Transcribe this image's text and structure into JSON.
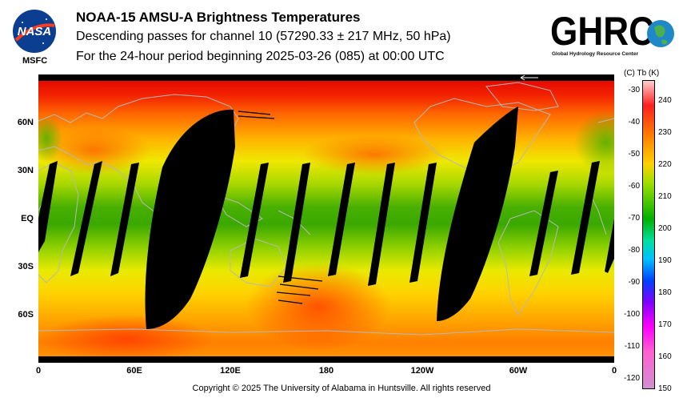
{
  "header": {
    "title": "NOAA-15 AMSU-A Brightness Temperatures",
    "subtitle1": "Descending passes for channel 10 (57290.33 ± 217 MHz, 50 hPa)",
    "subtitle2": "For the 24-hour period beginning 2025-03-26 (085) at 00:00 UTC"
  },
  "logos": {
    "nasa": "NASA",
    "msfc": "MSFC",
    "ghrc": "GHRC",
    "ghrc_full": "Global Hydrology Resource Center"
  },
  "map": {
    "lat_labels": [
      "60N",
      "30N",
      "EQ",
      "30S",
      "60S"
    ],
    "lon_labels": [
      "0",
      "60E",
      "120E",
      "180",
      "120W",
      "60W",
      "0"
    ]
  },
  "colorbar": {
    "header": "(C)  Tb  (K)",
    "celsius_ticks": [
      "-30",
      "-40",
      "-50",
      "-60",
      "-70",
      "-80",
      "-90",
      "-100",
      "-110",
      "-120"
    ],
    "kelvin_ticks": [
      "240",
      "230",
      "220",
      "210",
      "200",
      "190",
      "180",
      "170",
      "160",
      "150"
    ]
  },
  "footer": {
    "copyright": "Copyright © 2025 The University of Alabama in Huntsville.  All rights reserved"
  }
}
